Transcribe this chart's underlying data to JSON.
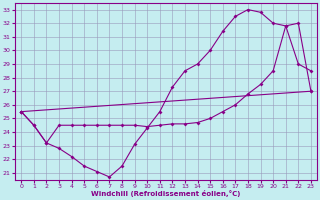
{
  "xlabel": "Windchill (Refroidissement éolien,°C)",
  "xlim": [
    -0.5,
    23.5
  ],
  "ylim": [
    20.5,
    33.5
  ],
  "yticks": [
    21,
    22,
    23,
    24,
    25,
    26,
    27,
    28,
    29,
    30,
    31,
    32,
    33
  ],
  "xticks": [
    0,
    1,
    2,
    3,
    4,
    5,
    6,
    7,
    8,
    9,
    10,
    11,
    12,
    13,
    14,
    15,
    16,
    17,
    18,
    19,
    20,
    21,
    22,
    23
  ],
  "background_color": "#c5edf0",
  "grid_color": "#9999bb",
  "line_color": "#880088",
  "line1_x": [
    0,
    1,
    2,
    3,
    4,
    5,
    6,
    7,
    8,
    9,
    10,
    11,
    12,
    13,
    14,
    15,
    16,
    17,
    18,
    19,
    20,
    21,
    22,
    23
  ],
  "line1_y": [
    25.5,
    24.5,
    23.2,
    22.8,
    22.2,
    21.5,
    21.1,
    20.7,
    21.5,
    23.1,
    24.3,
    25.5,
    27.3,
    28.5,
    29.0,
    30.0,
    31.4,
    32.5,
    33.0,
    32.8,
    32.0,
    31.8,
    29.0,
    28.5
  ],
  "line2_x": [
    0,
    1,
    2,
    3,
    4,
    5,
    6,
    7,
    8,
    9,
    10,
    11,
    12,
    13,
    14,
    15,
    16,
    17,
    18,
    19,
    20,
    21,
    22,
    23
  ],
  "line2_y": [
    25.5,
    24.5,
    23.2,
    24.5,
    24.5,
    24.5,
    24.5,
    24.5,
    24.5,
    24.5,
    24.4,
    24.5,
    24.6,
    24.6,
    24.7,
    25.0,
    25.5,
    26.0,
    26.8,
    27.5,
    28.5,
    31.8,
    32.0,
    27.0
  ],
  "line3_x": [
    0,
    23
  ],
  "line3_y": [
    25.5,
    27.0
  ]
}
